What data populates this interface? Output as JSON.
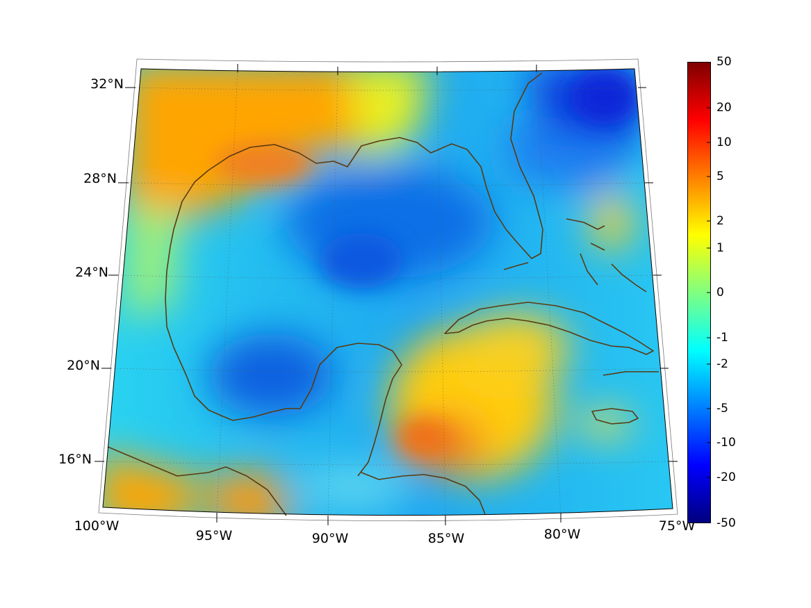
{
  "map": {
    "lat_labels": [
      "32°N",
      "28°N",
      "24°N",
      "20°N",
      "16°N"
    ],
    "lon_labels": [
      "100°W",
      "95°W",
      "90°W",
      "85°W",
      "80°W",
      "75°W"
    ],
    "extent": {
      "lon": [
        -100,
        -75
      ],
      "lat": [
        14,
        33
      ]
    },
    "coastline_color": "#5a3a10",
    "graticule": true
  },
  "colorbar": {
    "ticks": [
      "50",
      "20",
      "10",
      "5",
      "2",
      "1",
      "0",
      "-1",
      "-2",
      "-5",
      "-10",
      "-20",
      "-50"
    ],
    "colormap": "jet",
    "colors": [
      "#800000",
      "#ff0000",
      "#ff8000",
      "#ffff00",
      "#80ff80",
      "#00ffff",
      "#0080ff",
      "#0000ff",
      "#000080"
    ]
  }
}
